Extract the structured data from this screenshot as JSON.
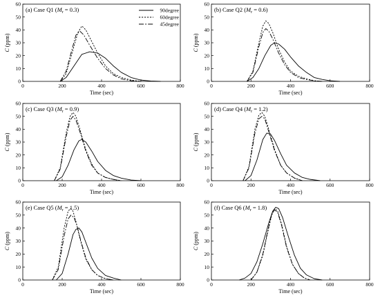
{
  "chart_data": [
    {
      "type": "line",
      "panel_label": "(a) Case Q1 (",
      "m_symbol": "M",
      "m_subscript": "r",
      "m_value": " = 0.3)",
      "xlabel": "Time (sec)",
      "ylabel_symbol": "C",
      "ylabel_unit": " (ppm)",
      "xlim": [
        0,
        800
      ],
      "ylim": [
        0,
        60
      ],
      "xticks": [
        0,
        200,
        400,
        600,
        800
      ],
      "yticks": [
        0,
        10,
        20,
        30,
        40,
        50,
        60
      ],
      "legend_position": "top-right",
      "series": [
        {
          "name": "90degree",
          "x": [
            190,
            220,
            260,
            300,
            340,
            380,
            420,
            460,
            500,
            550,
            600,
            650,
            700
          ],
          "y": [
            0,
            3,
            12,
            21,
            23,
            22,
            18,
            12,
            7,
            3,
            1,
            0.3,
            0
          ]
        },
        {
          "name": "60degree",
          "x": [
            190,
            220,
            250,
            280,
            300,
            320,
            350,
            380,
            420,
            460,
            500,
            550,
            600
          ],
          "y": [
            0,
            6,
            22,
            38,
            43,
            40,
            31,
            22,
            12,
            6,
            3,
            1,
            0
          ]
        },
        {
          "name": "45degree",
          "x": [
            190,
            220,
            250,
            270,
            290,
            310,
            340,
            380,
            420,
            460,
            500,
            550,
            600
          ],
          "y": [
            0,
            8,
            25,
            36,
            39,
            36,
            28,
            18,
            10,
            5,
            2,
            0.5,
            0
          ]
        }
      ]
    },
    {
      "type": "line",
      "panel_label": "(b) Case Q2 (",
      "m_symbol": "M",
      "m_subscript": "r",
      "m_value": " = 0.6)",
      "xlabel": "Time (sec)",
      "ylabel_symbol": "C",
      "ylabel_unit": " (ppm)",
      "xlim": [
        0,
        800
      ],
      "ylim": [
        0,
        60
      ],
      "xticks": [
        0,
        200,
        400,
        600,
        800
      ],
      "yticks": [
        0,
        10,
        20,
        30,
        40,
        50,
        60
      ],
      "series": [
        {
          "name": "90degree",
          "x": [
            180,
            210,
            240,
            270,
            300,
            320,
            340,
            370,
            400,
            440,
            480,
            520,
            560,
            600,
            650
          ],
          "y": [
            0,
            3,
            10,
            20,
            28,
            30,
            29,
            25,
            19,
            12,
            7,
            3,
            1.5,
            0.5,
            0
          ]
        },
        {
          "name": "60degree",
          "x": [
            180,
            210,
            240,
            260,
            275,
            290,
            310,
            340,
            370,
            400,
            440,
            480,
            520,
            560
          ],
          "y": [
            0,
            8,
            30,
            43,
            47,
            45,
            38,
            25,
            15,
            8,
            4,
            2,
            0.5,
            0
          ]
        },
        {
          "name": "45degree",
          "x": [
            180,
            210,
            240,
            260,
            275,
            290,
            310,
            340,
            370,
            400,
            440,
            480,
            520,
            560
          ],
          "y": [
            0,
            7,
            27,
            38,
            41,
            39,
            33,
            22,
            13,
            7,
            3,
            1.5,
            0.5,
            0
          ]
        }
      ]
    },
    {
      "type": "line",
      "panel_label": "(c) Case Q3 (",
      "m_symbol": "M",
      "m_subscript": "r",
      "m_value": " = 0.9)",
      "xlabel": "Time (sec)",
      "ylabel_symbol": "C",
      "ylabel_unit": " (ppm)",
      "xlim": [
        0,
        800
      ],
      "ylim": [
        0,
        60
      ],
      "xticks": [
        0,
        200,
        400,
        600,
        800
      ],
      "yticks": [
        0,
        10,
        20,
        30,
        40,
        50,
        60
      ],
      "series": [
        {
          "name": "90degree",
          "x": [
            170,
            200,
            230,
            260,
            285,
            300,
            320,
            350,
            380,
            420,
            460,
            500,
            550,
            600
          ],
          "y": [
            0,
            3,
            12,
            24,
            31,
            32,
            30,
            23,
            15,
            8,
            4,
            2,
            0.5,
            0
          ]
        },
        {
          "name": "60degree",
          "x": [
            160,
            190,
            220,
            240,
            255,
            270,
            290,
            320,
            350,
            380,
            420,
            460,
            500
          ],
          "y": [
            0,
            10,
            37,
            50,
            53,
            50,
            40,
            24,
            13,
            6,
            2.5,
            1,
            0
          ]
        },
        {
          "name": "45degree",
          "x": [
            160,
            190,
            220,
            240,
            255,
            270,
            290,
            320,
            350,
            380,
            420,
            460,
            500
          ],
          "y": [
            0,
            9,
            34,
            47,
            50,
            47,
            38,
            23,
            12,
            6,
            2.5,
            1,
            0
          ]
        }
      ]
    },
    {
      "type": "line",
      "panel_label": "(d) Case Q4 (",
      "m_symbol": "M",
      "m_subscript": "r",
      "m_value": " = 1.2)",
      "xlabel": "Time (sec)",
      "ylabel_symbol": "C",
      "ylabel_unit": " (ppm)",
      "xlim": [
        0,
        800
      ],
      "ylim": [
        0,
        60
      ],
      "xticks": [
        0,
        200,
        400,
        600,
        800
      ],
      "yticks": [
        0,
        10,
        20,
        30,
        40,
        50,
        60
      ],
      "series": [
        {
          "name": "90degree",
          "x": [
            170,
            200,
            230,
            260,
            280,
            300,
            320,
            350,
            380,
            420,
            460,
            500,
            550
          ],
          "y": [
            0,
            4,
            16,
            32,
            37,
            36,
            31,
            21,
            12,
            6,
            2.5,
            1,
            0
          ]
        },
        {
          "name": "60degree",
          "x": [
            160,
            190,
            220,
            240,
            255,
            270,
            290,
            320,
            350,
            380,
            420,
            460
          ],
          "y": [
            0,
            11,
            40,
            51,
            53,
            50,
            40,
            24,
            12,
            6,
            2,
            0
          ]
        },
        {
          "name": "45degree",
          "x": [
            160,
            190,
            220,
            240,
            255,
            270,
            290,
            320,
            350,
            380,
            420,
            460
          ],
          "y": [
            0,
            10,
            37,
            48,
            50,
            48,
            38,
            23,
            12,
            6,
            2,
            0
          ]
        }
      ]
    },
    {
      "type": "line",
      "panel_label": "(e) Case Q5 (",
      "m_symbol": "M",
      "m_subscript": "r",
      "m_value": " = 1.5)",
      "xlabel": "Time (sec)",
      "ylabel_symbol": "C",
      "ylabel_unit": " (ppm)",
      "xlim": [
        0,
        800
      ],
      "ylim": [
        0,
        60
      ],
      "xticks": [
        0,
        200,
        400,
        600,
        800
      ],
      "yticks": [
        0,
        10,
        20,
        30,
        40,
        50,
        60
      ],
      "series": [
        {
          "name": "90degree",
          "x": [
            170,
            200,
            230,
            255,
            270,
            285,
            300,
            320,
            350,
            380,
            420,
            460,
            500
          ],
          "y": [
            0,
            5,
            20,
            35,
            39,
            40,
            37,
            29,
            17,
            9,
            3.5,
            1.5,
            0
          ]
        },
        {
          "name": "60degree",
          "x": [
            150,
            180,
            210,
            230,
            242,
            255,
            270,
            290,
            320,
            350,
            380,
            420,
            460
          ],
          "y": [
            0,
            10,
            40,
            53,
            55,
            53,
            45,
            32,
            16,
            8,
            3.5,
            1,
            0
          ]
        },
        {
          "name": "45degree",
          "x": [
            150,
            180,
            210,
            230,
            245,
            260,
            275,
            295,
            320,
            350,
            380,
            420,
            460
          ],
          "y": [
            0,
            8,
            34,
            47,
            50,
            48,
            42,
            30,
            17,
            8,
            3.5,
            1,
            0
          ]
        }
      ]
    },
    {
      "type": "line",
      "panel_label": "(f) Case Q6 (",
      "m_symbol": "M",
      "m_subscript": "r",
      "m_value": " = 1.8)",
      "xlabel": "Time (sec)",
      "ylabel_symbol": "C",
      "ylabel_unit": " (ppm)",
      "xlim": [
        0,
        800
      ],
      "ylim": [
        0,
        60
      ],
      "xticks": [
        0,
        200,
        400,
        600,
        800
      ],
      "yticks": [
        0,
        10,
        20,
        30,
        40,
        50,
        60
      ],
      "series": [
        {
          "name": "90degree",
          "x": [
            140,
            170,
            200,
            230,
            260,
            290,
            310,
            325,
            340,
            360,
            390,
            420,
            450,
            480,
            520,
            560
          ],
          "y": [
            0,
            1.5,
            5,
            14,
            28,
            44,
            53,
            56,
            55,
            48,
            33,
            19,
            9,
            4,
            1,
            0
          ]
        },
        {
          "name": "60degree",
          "x": [
            200,
            230,
            260,
            285,
            305,
            320,
            335,
            355,
            380,
            410,
            440,
            470,
            500
          ],
          "y": [
            0,
            6,
            19,
            37,
            50,
            55,
            53,
            43,
            26,
            12,
            5,
            1.5,
            0
          ]
        },
        {
          "name": "45degree",
          "x": [
            200,
            230,
            260,
            285,
            305,
            320,
            335,
            355,
            380,
            410,
            440,
            470,
            500
          ],
          "y": [
            0,
            6,
            20,
            38,
            51,
            54,
            52,
            42,
            25,
            12,
            5,
            1.5,
            0
          ]
        }
      ]
    }
  ]
}
